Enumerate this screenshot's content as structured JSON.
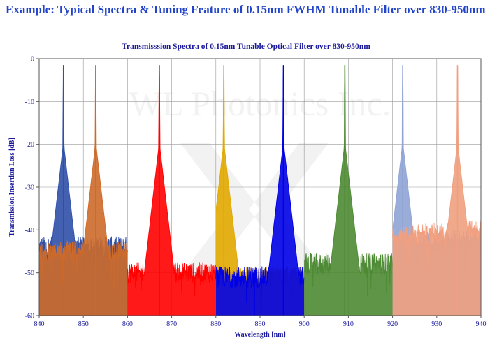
{
  "heading": "Example: Typical Spectra & Tuning Feature of 0.15nm FWHM Tunable Filter over 830-950nm",
  "chart_data": {
    "type": "line",
    "title": "Transmisssion Spectra of 0.15nm Tunable Optical Filter over 830-950nm",
    "xlabel": "Wavelength [nm]",
    "ylabel": "Transmission Insertion Loss [dB]",
    "xlim": [
      840,
      940
    ],
    "ylim": [
      -60,
      0
    ],
    "xticks": [
      "840",
      "850",
      "860",
      "870",
      "880",
      "890",
      "900",
      "910",
      "920",
      "930",
      "940"
    ],
    "yticks": [
      "0",
      "-10",
      "-20",
      "-30",
      "-40",
      "-50",
      "-60"
    ],
    "grid": true,
    "legend": "none",
    "watermark": "WL Photonics Inc.",
    "series": [
      {
        "color": "#3050a8",
        "band": [
          840,
          860
        ],
        "peak": 845.5,
        "peak_value": -1.5,
        "noise_floor": -44
      },
      {
        "color": "#cd6a2a",
        "band": [
          840,
          860
        ],
        "peak": 852.8,
        "peak_value": -1.5,
        "noise_floor": -45
      },
      {
        "color": "#ff0000",
        "band": [
          860,
          880
        ],
        "peak": 867.2,
        "peak_value": -1.5,
        "noise_floor": -50
      },
      {
        "color": "#e2a800",
        "band": [
          880,
          900
        ],
        "peak": 881.8,
        "peak_value": -1.5,
        "noise_floor": -51
      },
      {
        "color": "#0000e6",
        "band": [
          880,
          900
        ],
        "peak": 895.3,
        "peak_value": -1.5,
        "noise_floor": -51
      },
      {
        "color": "#4d8a33",
        "band": [
          900,
          920
        ],
        "peak": 909.2,
        "peak_value": -1.5,
        "noise_floor": -48
      },
      {
        "color": "#8fa3d4",
        "band": [
          920,
          940
        ],
        "peak": 922.3,
        "peak_value": -1.5,
        "noise_floor": -42
      },
      {
        "color": "#f0a080",
        "band": [
          920,
          940
        ],
        "peak": 934.7,
        "peak_value": -1.5,
        "noise_floor": -40
      }
    ]
  }
}
